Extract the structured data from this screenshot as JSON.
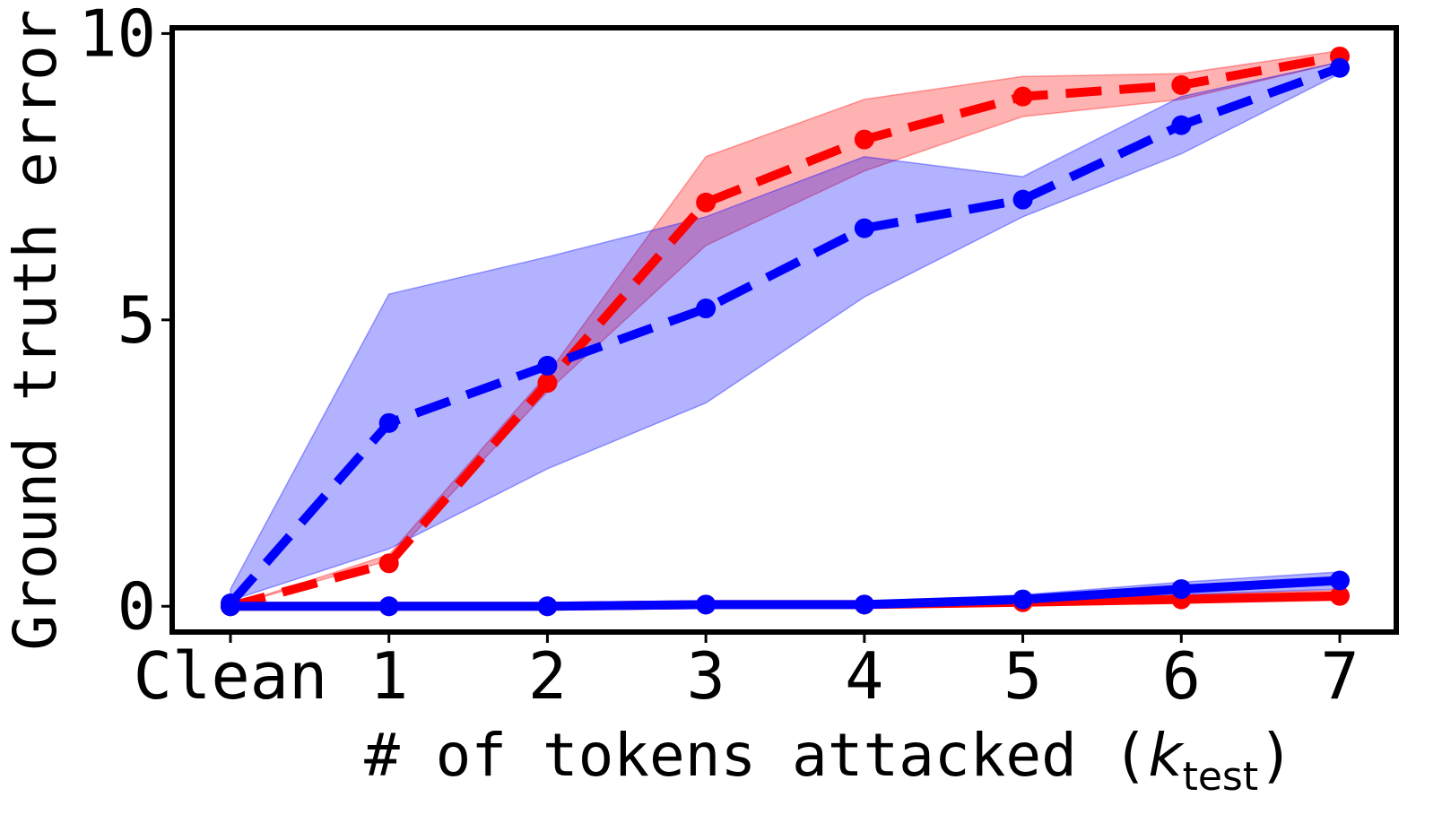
{
  "chart_data": {
    "type": "line",
    "xlabel": "# of tokens attacked (",
    "xlabel_var": "k",
    "xlabel_sub": "test",
    "xlabel_close": ")",
    "ylabel": "Ground truth error",
    "categories": [
      "Clean",
      "1",
      "2",
      "3",
      "4",
      "5",
      "6",
      "7"
    ],
    "ylim": [
      -0.45,
      10.1
    ],
    "yticks": [
      0,
      5,
      10
    ],
    "ytick_labels": [
      "0",
      "5",
      "10"
    ],
    "grid": false,
    "legend": "none",
    "series": [
      {
        "color": "#ff0000",
        "dash": true,
        "values": [
          0.0,
          0.75,
          3.9,
          7.05,
          8.15,
          8.9,
          9.1,
          9.6
        ],
        "band_low": [
          0.0,
          0.8,
          3.75,
          6.3,
          7.6,
          8.55,
          8.85,
          9.5
        ],
        "band_high": [
          0.0,
          0.9,
          4.05,
          7.85,
          8.85,
          9.25,
          9.3,
          9.7
        ]
      },
      {
        "color": "#0000ff",
        "dash": true,
        "values": [
          0.05,
          3.2,
          4.2,
          5.2,
          6.6,
          7.1,
          8.4,
          9.4
        ],
        "band_low": [
          0.1,
          1.0,
          2.4,
          3.55,
          5.4,
          6.8,
          7.9,
          9.3
        ],
        "band_high": [
          0.3,
          5.45,
          6.1,
          6.8,
          7.85,
          7.5,
          8.9,
          9.5
        ]
      },
      {
        "color": "#ff0000",
        "dash": false,
        "values": [
          0.0,
          0.0,
          0.0,
          0.03,
          0.03,
          0.07,
          0.12,
          0.18
        ],
        "band_low": [
          0.0,
          0.0,
          0.0,
          0.0,
          0.0,
          0.02,
          0.06,
          0.1
        ],
        "band_high": [
          0.02,
          0.02,
          0.03,
          0.06,
          0.06,
          0.12,
          0.2,
          0.28
        ]
      },
      {
        "color": "#0000ff",
        "dash": false,
        "values": [
          0.0,
          0.0,
          0.0,
          0.03,
          0.03,
          0.12,
          0.3,
          0.45
        ],
        "band_low": [
          0.0,
          0.0,
          0.0,
          0.0,
          0.0,
          0.05,
          0.2,
          0.3
        ],
        "band_high": [
          0.02,
          0.02,
          0.03,
          0.06,
          0.06,
          0.2,
          0.42,
          0.6
        ]
      }
    ]
  }
}
